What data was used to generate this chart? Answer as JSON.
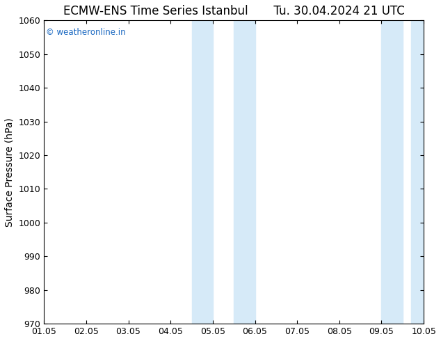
{
  "title": "ECMW-ENS Time Series Istanbul       Tu. 30.04.2024 21 UTC",
  "ylabel": "Surface Pressure (hPa)",
  "ylim": [
    970,
    1060
  ],
  "yticks": [
    970,
    980,
    990,
    1000,
    1010,
    1020,
    1030,
    1040,
    1050,
    1060
  ],
  "xtick_labels": [
    "01.05",
    "02.05",
    "03.05",
    "04.05",
    "05.05",
    "06.05",
    "07.05",
    "08.05",
    "09.05",
    "10.05"
  ],
  "shaded_regions": [
    {
      "xstart": 3.5,
      "xend": 4.0
    },
    {
      "xstart": 4.5,
      "xend": 5.0
    },
    {
      "xstart": 8.0,
      "xend": 8.5
    },
    {
      "xstart": 8.7,
      "xend": 9.2
    }
  ],
  "shade_color": "#d6eaf8",
  "background_color": "#ffffff",
  "plot_bg_color": "#ffffff",
  "watermark_text": "© weatheronline.in",
  "watermark_color": "#1565c0",
  "title_fontsize": 12,
  "label_fontsize": 10,
  "tick_fontsize": 9,
  "border_color": "#000000"
}
